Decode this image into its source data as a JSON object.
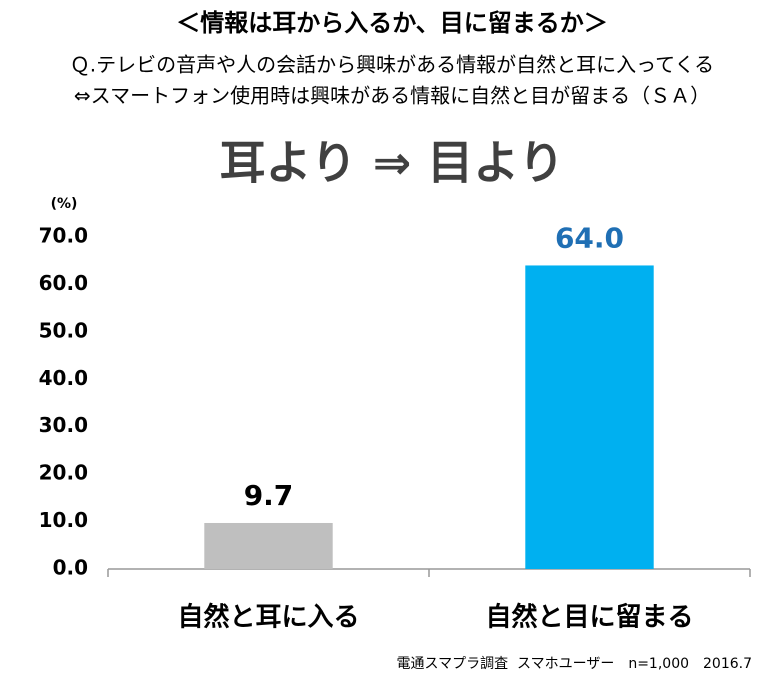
{
  "chart_data": {
    "type": "bar",
    "title": "＜情報は耳から入るか、目に留まるか＞",
    "subtitle": [
      "Ｑ.テレビの音声や人の会話から興味がある情報が自然と耳に入ってくる",
      "⇔スマートフォン使用時は興味がある情報に自然と目が留まる（ＳＡ）"
    ],
    "headline": "耳より ⇒ 目より",
    "y_label": "(%)",
    "footnote": "電通スマプラ調査  スマホユーザー　n=1,000　2016.7",
    "categories": [
      "自然と耳に入る",
      "自然と目に留まる"
    ],
    "values": [
      9.7,
      64.0
    ],
    "value_labels": [
      "9.7",
      "64.0"
    ],
    "colors": [
      "#bfbfbf",
      "#00b0f0"
    ],
    "label_colors": [
      "#000000",
      "#1f6fb4"
    ],
    "ylim": [
      0,
      70
    ],
    "yticks": [
      {
        "value": 0,
        "label": "0.0"
      },
      {
        "value": 10,
        "label": "10.0"
      },
      {
        "value": 20,
        "label": "20.0"
      },
      {
        "value": 30,
        "label": "30.0"
      },
      {
        "value": 40,
        "label": "40.0"
      },
      {
        "value": 50,
        "label": "50.0"
      },
      {
        "value": 60,
        "label": "60.0"
      },
      {
        "value": 70,
        "label": "70.0"
      }
    ],
    "grid": false
  }
}
